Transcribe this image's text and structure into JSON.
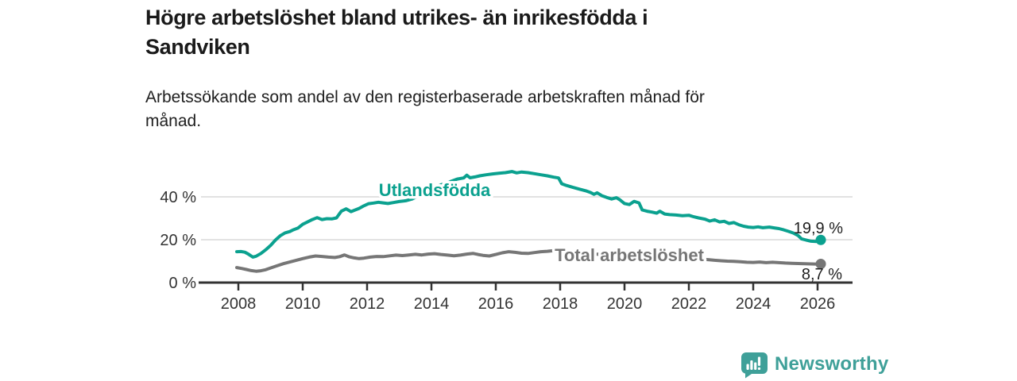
{
  "header": {
    "title_lines": [
      "Högre arbetslöshet bland utrikes- än inrikesfödda i",
      "Sandviken"
    ],
    "subtitle_lines": [
      "Arbetssökande som andel av den registerbaserade arbetskraften månad för",
      "månad."
    ]
  },
  "branding": {
    "logo_text": "Newsworthy",
    "logo_icon": "bar-chart-speech-bubble-icon",
    "brand_color": "#3fa099"
  },
  "chart_data": {
    "type": "line",
    "title": "Högre arbetslöshet bland utrikes- än inrikesfödda i Sandviken",
    "subtitle": "Arbetssökande som andel av den registerbaserade arbetskraften månad för månad.",
    "unit": "%",
    "legend_position": "inline-labels",
    "grid": "horizontal-only",
    "x_axis": {
      "range": [
        2007.8,
        2027.1
      ],
      "ticks": [
        {
          "value": 2008,
          "label": "2008"
        },
        {
          "value": 2010,
          "label": "2010"
        },
        {
          "value": 2012,
          "label": "2012"
        },
        {
          "value": 2014,
          "label": "2014"
        },
        {
          "value": 2016,
          "label": "2016"
        },
        {
          "value": 2018,
          "label": "2018"
        },
        {
          "value": 2020,
          "label": "2020"
        },
        {
          "value": 2022,
          "label": "2022"
        },
        {
          "value": 2024,
          "label": "2024"
        },
        {
          "value": 2026,
          "label": "2026"
        }
      ]
    },
    "y_axis": {
      "range": [
        0,
        56
      ],
      "gridlines": [
        20,
        40
      ],
      "ticks": [
        {
          "value": 0,
          "label": "0 %"
        },
        {
          "value": 20,
          "label": "20 %"
        },
        {
          "value": 40,
          "label": "40 %"
        }
      ]
    },
    "colors": {
      "grid": "#d9d9d9",
      "axis": "#333333",
      "axis_text": "#333333",
      "value_label_text": "#1f1f1f"
    },
    "series": [
      {
        "name": "Utlandsfödda",
        "color": "#0ba18f",
        "end_label": "19,9 %",
        "end_value": 19.9,
        "points": [
          [
            2007.95,
            14.4
          ],
          [
            2008.08,
            14.5
          ],
          [
            2008.2,
            14.2
          ],
          [
            2008.3,
            13.4
          ],
          [
            2008.45,
            11.9
          ],
          [
            2008.55,
            12.3
          ],
          [
            2008.7,
            13.6
          ],
          [
            2008.85,
            15.3
          ],
          [
            2009.0,
            17.3
          ],
          [
            2009.15,
            19.8
          ],
          [
            2009.3,
            21.8
          ],
          [
            2009.45,
            23.2
          ],
          [
            2009.6,
            23.8
          ],
          [
            2009.7,
            24.6
          ],
          [
            2009.85,
            25.4
          ],
          [
            2010.0,
            27.2
          ],
          [
            2010.15,
            28.3
          ],
          [
            2010.3,
            29.4
          ],
          [
            2010.45,
            30.3
          ],
          [
            2010.6,
            29.4
          ],
          [
            2010.75,
            29.8
          ],
          [
            2010.9,
            29.7
          ],
          [
            2011.05,
            30.2
          ],
          [
            2011.2,
            33.3
          ],
          [
            2011.35,
            34.4
          ],
          [
            2011.5,
            33.1
          ],
          [
            2011.6,
            33.7
          ],
          [
            2011.75,
            34.6
          ],
          [
            2011.9,
            35.8
          ],
          [
            2012.05,
            36.8
          ],
          [
            2012.2,
            37.1
          ],
          [
            2012.35,
            37.5
          ],
          [
            2012.5,
            37.2
          ],
          [
            2012.65,
            36.9
          ],
          [
            2012.8,
            37.3
          ],
          [
            2013.0,
            37.8
          ],
          [
            2013.2,
            38.2
          ],
          [
            2013.4,
            39.0
          ],
          [
            2013.6,
            40.5
          ],
          [
            2013.8,
            42.0
          ],
          [
            2014.0,
            43.6
          ],
          [
            2014.2,
            45.2
          ],
          [
            2014.4,
            46.1
          ],
          [
            2014.6,
            47.2
          ],
          [
            2014.8,
            48.3
          ],
          [
            2015.0,
            48.8
          ],
          [
            2015.1,
            50.1
          ],
          [
            2015.2,
            48.9
          ],
          [
            2015.35,
            49.3
          ],
          [
            2015.5,
            49.8
          ],
          [
            2015.7,
            50.3
          ],
          [
            2015.9,
            50.7
          ],
          [
            2016.1,
            51.0
          ],
          [
            2016.3,
            51.3
          ],
          [
            2016.5,
            51.8
          ],
          [
            2016.65,
            51.2
          ],
          [
            2016.8,
            51.6
          ],
          [
            2017.0,
            51.3
          ],
          [
            2017.2,
            50.8
          ],
          [
            2017.4,
            50.3
          ],
          [
            2017.6,
            49.8
          ],
          [
            2017.8,
            49.2
          ],
          [
            2017.95,
            48.8
          ],
          [
            2018.05,
            46.1
          ],
          [
            2018.2,
            45.3
          ],
          [
            2018.4,
            44.4
          ],
          [
            2018.6,
            43.6
          ],
          [
            2018.8,
            42.8
          ],
          [
            2018.95,
            42.0
          ],
          [
            2019.05,
            41.2
          ],
          [
            2019.15,
            41.9
          ],
          [
            2019.3,
            40.5
          ],
          [
            2019.45,
            39.7
          ],
          [
            2019.6,
            39.0
          ],
          [
            2019.75,
            39.6
          ],
          [
            2019.85,
            38.7
          ],
          [
            2020.0,
            36.9
          ],
          [
            2020.15,
            36.4
          ],
          [
            2020.3,
            37.9
          ],
          [
            2020.45,
            37.2
          ],
          [
            2020.55,
            33.9
          ],
          [
            2020.7,
            33.3
          ],
          [
            2020.85,
            32.9
          ],
          [
            2021.0,
            32.4
          ],
          [
            2021.1,
            33.3
          ],
          [
            2021.25,
            32.0
          ],
          [
            2021.4,
            31.7
          ],
          [
            2021.6,
            31.5
          ],
          [
            2021.8,
            31.2
          ],
          [
            2022.0,
            31.4
          ],
          [
            2022.15,
            30.7
          ],
          [
            2022.3,
            30.2
          ],
          [
            2022.5,
            29.6
          ],
          [
            2022.65,
            28.7
          ],
          [
            2022.8,
            29.3
          ],
          [
            2022.95,
            28.3
          ],
          [
            2023.1,
            28.6
          ],
          [
            2023.25,
            27.6
          ],
          [
            2023.4,
            28.0
          ],
          [
            2023.55,
            27.0
          ],
          [
            2023.7,
            26.3
          ],
          [
            2023.85,
            25.9
          ],
          [
            2024.0,
            25.7
          ],
          [
            2024.15,
            26.0
          ],
          [
            2024.3,
            25.6
          ],
          [
            2024.5,
            25.9
          ],
          [
            2024.65,
            25.5
          ],
          [
            2024.8,
            25.2
          ],
          [
            2024.95,
            24.6
          ],
          [
            2025.1,
            23.9
          ],
          [
            2025.25,
            23.1
          ],
          [
            2025.4,
            21.9
          ],
          [
            2025.5,
            20.4
          ],
          [
            2025.65,
            19.8
          ],
          [
            2025.8,
            19.3
          ],
          [
            2025.95,
            19.2
          ],
          [
            2026.1,
            19.9
          ]
        ]
      },
      {
        "name": "Total arbetslöshet",
        "color": "#767676",
        "end_label": "8,7 %",
        "end_value": 8.7,
        "points": [
          [
            2007.95,
            7.0
          ],
          [
            2008.1,
            6.6
          ],
          [
            2008.25,
            6.1
          ],
          [
            2008.4,
            5.6
          ],
          [
            2008.55,
            5.3
          ],
          [
            2008.7,
            5.5
          ],
          [
            2008.85,
            6.0
          ],
          [
            2009.0,
            6.8
          ],
          [
            2009.2,
            7.8
          ],
          [
            2009.4,
            8.8
          ],
          [
            2009.6,
            9.6
          ],
          [
            2009.8,
            10.4
          ],
          [
            2010.0,
            11.2
          ],
          [
            2010.2,
            11.9
          ],
          [
            2010.4,
            12.4
          ],
          [
            2010.6,
            12.2
          ],
          [
            2010.8,
            11.9
          ],
          [
            2011.0,
            11.7
          ],
          [
            2011.15,
            12.1
          ],
          [
            2011.3,
            12.9
          ],
          [
            2011.45,
            12.0
          ],
          [
            2011.6,
            11.5
          ],
          [
            2011.75,
            11.2
          ],
          [
            2011.9,
            11.4
          ],
          [
            2012.1,
            11.9
          ],
          [
            2012.3,
            12.2
          ],
          [
            2012.5,
            12.1
          ],
          [
            2012.7,
            12.5
          ],
          [
            2012.9,
            12.8
          ],
          [
            2013.1,
            12.6
          ],
          [
            2013.3,
            12.9
          ],
          [
            2013.5,
            13.2
          ],
          [
            2013.7,
            12.9
          ],
          [
            2013.9,
            13.3
          ],
          [
            2014.1,
            13.5
          ],
          [
            2014.3,
            13.1
          ],
          [
            2014.5,
            12.8
          ],
          [
            2014.7,
            12.5
          ],
          [
            2014.9,
            12.8
          ],
          [
            2015.1,
            13.3
          ],
          [
            2015.3,
            13.6
          ],
          [
            2015.45,
            13.1
          ],
          [
            2015.6,
            12.7
          ],
          [
            2015.8,
            12.4
          ],
          [
            2016.0,
            13.1
          ],
          [
            2016.2,
            13.9
          ],
          [
            2016.4,
            14.4
          ],
          [
            2016.6,
            14.1
          ],
          [
            2016.8,
            13.7
          ],
          [
            2017.0,
            13.6
          ],
          [
            2017.2,
            14.0
          ],
          [
            2017.4,
            14.4
          ],
          [
            2017.6,
            14.6
          ],
          [
            2017.8,
            14.9
          ],
          [
            2017.95,
            14.7
          ],
          [
            2018.2,
            14.4
          ],
          [
            2018.5,
            14.1
          ],
          [
            2018.8,
            13.7
          ],
          [
            2019.1,
            13.3
          ],
          [
            2019.4,
            13.0
          ],
          [
            2019.7,
            12.7
          ],
          [
            2020.0,
            12.6
          ],
          [
            2020.3,
            13.1
          ],
          [
            2020.6,
            12.4
          ],
          [
            2020.9,
            12.0
          ],
          [
            2021.2,
            11.7
          ],
          [
            2021.5,
            11.4
          ],
          [
            2021.8,
            11.2
          ],
          [
            2022.1,
            10.9
          ],
          [
            2022.4,
            10.8
          ],
          [
            2022.6,
            10.7
          ],
          [
            2022.8,
            10.4
          ],
          [
            2023.0,
            10.2
          ],
          [
            2023.2,
            10.0
          ],
          [
            2023.4,
            9.9
          ],
          [
            2023.6,
            9.7
          ],
          [
            2023.8,
            9.5
          ],
          [
            2024.0,
            9.4
          ],
          [
            2024.2,
            9.6
          ],
          [
            2024.4,
            9.3
          ],
          [
            2024.6,
            9.5
          ],
          [
            2024.8,
            9.3
          ],
          [
            2025.0,
            9.1
          ],
          [
            2025.2,
            9.0
          ],
          [
            2025.4,
            8.9
          ],
          [
            2025.6,
            8.8
          ],
          [
            2025.8,
            8.7
          ],
          [
            2026.0,
            8.6
          ],
          [
            2026.1,
            8.7
          ]
        ]
      }
    ]
  }
}
